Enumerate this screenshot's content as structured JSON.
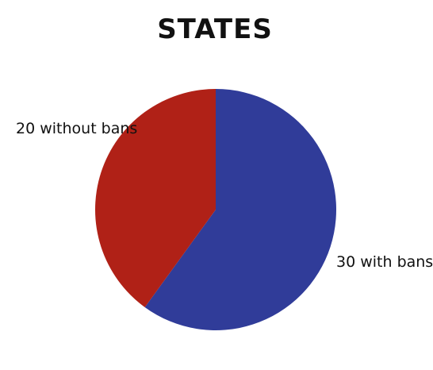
{
  "chart_data": {
    "type": "pie",
    "title": "STATES",
    "slices": [
      {
        "label": "30 with bans",
        "value": 30,
        "color": "#303c99"
      },
      {
        "label": "20 without bans",
        "value": 20,
        "color": "#b02117"
      }
    ],
    "start_angle_deg": 0,
    "direction": "clockwise",
    "legend": "none"
  }
}
